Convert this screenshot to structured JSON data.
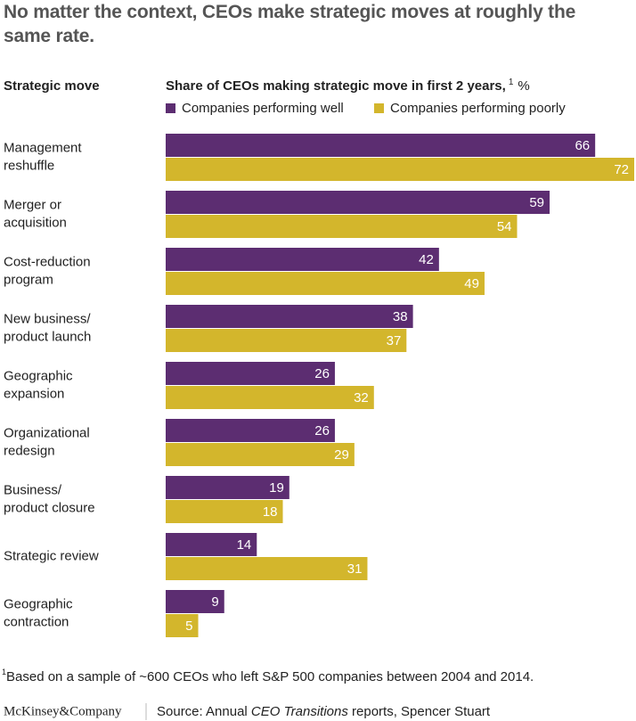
{
  "chart_data": {
    "type": "hbar",
    "title": "No matter the context, CEOs make strategic moves at roughly the same rate.",
    "category_header": "Strategic move",
    "axis_label": "Share of CEOs making strategic move in first 2 years,",
    "axis_label_note": "1",
    "axis_unit": "%",
    "categories": [
      "Management\nreshuffle",
      "Merger or\nacquisition",
      "Cost-reduction\nprogram",
      "New business/\nproduct launch",
      "Geographic\nexpansion",
      "Organizational\nredesign",
      "Business/\nproduct closure",
      "Strategic review",
      "Geographic\ncontraction"
    ],
    "series": [
      {
        "name": "Companies performing well",
        "color": "#5c2d71",
        "values": [
          66,
          59,
          42,
          38,
          26,
          26,
          19,
          14,
          9
        ]
      },
      {
        "name": "Companies performing poorly",
        "color": "#d3b62c",
        "values": [
          72,
          54,
          49,
          37,
          32,
          29,
          18,
          31,
          5
        ]
      }
    ],
    "footnote_marker": "1",
    "footnote": "Based on a sample of ~600 CEOs who left S&P 500 companies between 2004 and 2014.",
    "logo": "McKinsey&Company",
    "source_prefix": "Source: Annual ",
    "source_italic": "CEO Transitions",
    "source_suffix": " reports, Spencer Stuart"
  }
}
